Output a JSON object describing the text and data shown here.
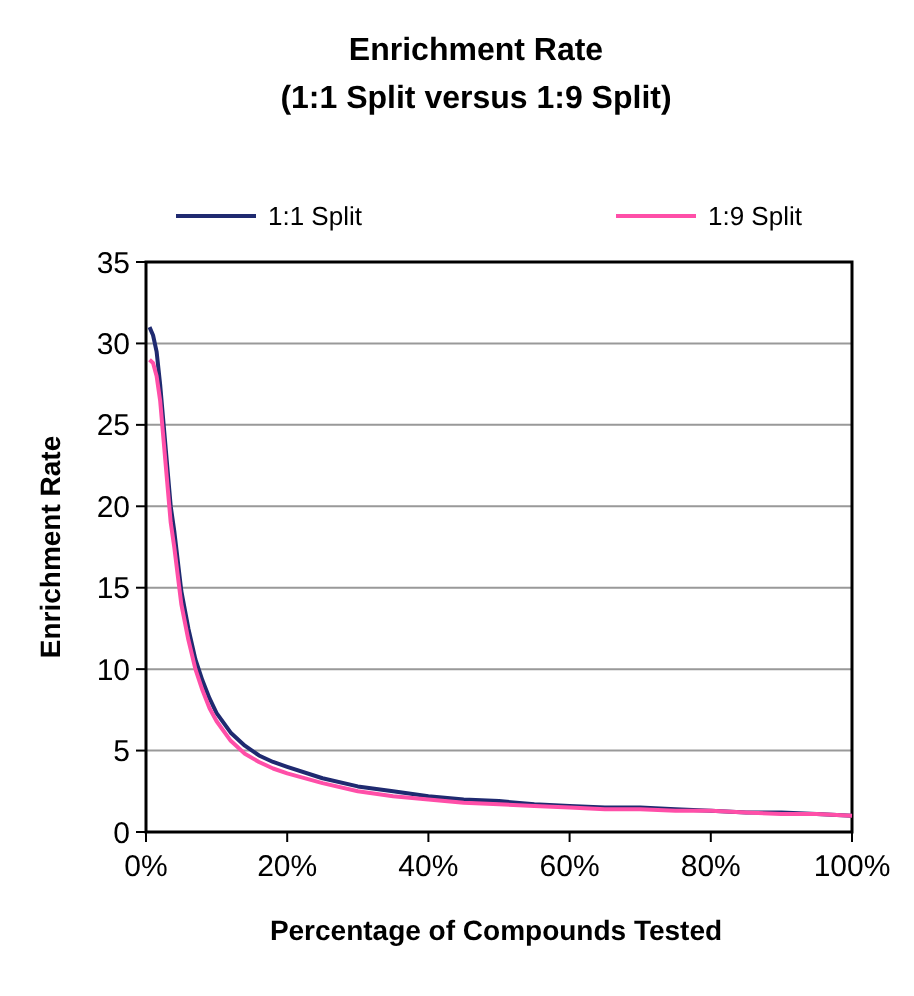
{
  "chart_data": {
    "type": "line",
    "title": "Enrichment Rate",
    "subtitle": "(1:1 Split versus 1:9 Split)",
    "xlabel": "Percentage of Compounds Tested",
    "ylabel": "Enrichment Rate",
    "x": [
      0.5,
      1,
      1.5,
      2,
      2.5,
      3,
      3.5,
      4,
      5,
      6,
      7,
      8,
      9,
      10,
      12,
      14,
      16,
      18,
      20,
      25,
      30,
      35,
      40,
      45,
      50,
      55,
      60,
      65,
      70,
      75,
      80,
      85,
      90,
      95,
      100
    ],
    "series": [
      {
        "name": "1:1 Split",
        "color": "#1f2a70",
        "values": [
          31,
          30.5,
          29.5,
          27.5,
          25,
          22.5,
          20,
          18.5,
          14.8,
          12.5,
          10.6,
          9.3,
          8.2,
          7.3,
          6.1,
          5.3,
          4.7,
          4.3,
          4,
          3.3,
          2.8,
          2.5,
          2.2,
          2,
          1.9,
          1.7,
          1.6,
          1.5,
          1.5,
          1.4,
          1.3,
          1.2,
          1.2,
          1.1,
          1
        ]
      },
      {
        "name": "1:9 Split",
        "color": "#ff4fa8",
        "values": [
          29,
          28.8,
          28,
          26.5,
          24,
          21.5,
          19,
          17.5,
          14,
          11.8,
          10,
          8.7,
          7.6,
          6.8,
          5.6,
          4.8,
          4.3,
          3.9,
          3.6,
          3,
          2.5,
          2.2,
          2,
          1.8,
          1.7,
          1.6,
          1.5,
          1.4,
          1.4,
          1.3,
          1.3,
          1.2,
          1.1,
          1.1,
          1
        ]
      }
    ],
    "xlim": [
      0,
      100
    ],
    "xticks": [
      {
        "value": 0,
        "label": "0%"
      },
      {
        "value": 20,
        "label": "20%"
      },
      {
        "value": 40,
        "label": "40%"
      },
      {
        "value": 60,
        "label": "60%"
      },
      {
        "value": 80,
        "label": "80%"
      },
      {
        "value": 100,
        "label": "100%"
      }
    ],
    "ylim": [
      0,
      35
    ],
    "yticks": [
      0,
      5,
      10,
      15,
      20,
      25,
      30,
      35
    ],
    "grid": "y",
    "legend": "top"
  }
}
